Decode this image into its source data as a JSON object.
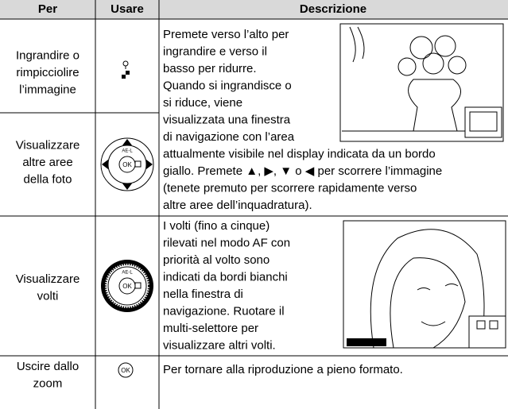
{
  "table": {
    "header": [
      "Per",
      "Usare",
      "Descrizione"
    ],
    "rows": [
      {
        "action": [
          "Ingrandire o",
          "rimpicciolire",
          "l’immagine"
        ]
      },
      {
        "action": [
          "Visualizzare",
          "altre aree",
          "della foto"
        ]
      },
      {
        "action": [
          "Visualizzare",
          "volti"
        ]
      },
      {
        "action": [
          "Uscire dallo",
          "zoom"
        ]
      }
    ],
    "descriptions": [
      {
        "lines": [
          "Premete verso l’alto per",
          "ingrandire e verso il",
          "basso per ridurre.",
          "Quando si ingrandisce o",
          "si riduce, viene",
          "visualizzata una finestra",
          "di navigazione con l’area",
          "attualmente visibile nel display indicata da un bordo",
          "giallo. Premete ▲, ▶, ▼ o ◀ per scorrere l’immagine",
          "(tenete premuto per scorrere rapidamente verso",
          "altre aree dell’inquadratura)."
        ]
      },
      {
        "lines": [
          "I volti (fino a cinque)",
          "rilevati nel modo AF con",
          "priorità al volto sono",
          "indicati da bordi bianchi",
          "nella finestra di",
          "navigazione. Ruotare il",
          "multi-selettore per",
          "visualizzare altri volti."
        ]
      },
      {
        "lines": [
          "Per tornare alla riproduzione a pieno formato."
        ]
      }
    ]
  }
}
